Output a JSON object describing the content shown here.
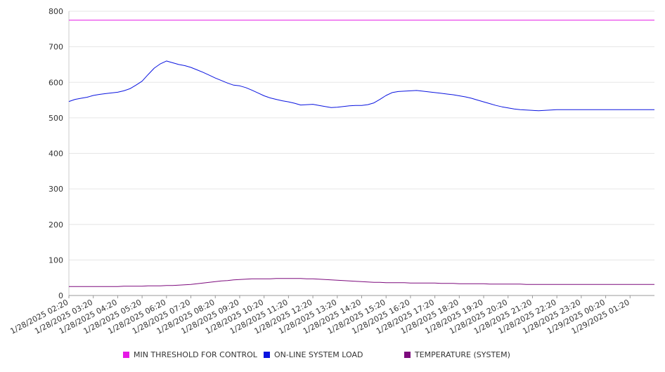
{
  "chart_data": {
    "type": "line",
    "title": "",
    "xlabel": "",
    "ylabel": "",
    "ylim": [
      0,
      800
    ],
    "yticks": [
      0,
      100,
      200,
      300,
      400,
      500,
      600,
      700,
      800
    ],
    "grid": true,
    "legend_position": "bottom",
    "x_tick_labels": [
      "1/28/2025 02:20",
      "1/28/2025 03:20",
      "1/28/2025 04:20",
      "1/28/2025 05:20",
      "1/28/2025 06:20",
      "1/28/2025 07:20",
      "1/28/2025 08:20",
      "1/28/2025 09:20",
      "1/28/2025 10:20",
      "1/28/2025 11:20",
      "1/28/2025 12:20",
      "1/28/2025 13:20",
      "1/28/2025 14:20",
      "1/28/2025 15:20",
      "1/28/2025 16:20",
      "1/28/2025 17:20",
      "1/28/2025 18:20",
      "1/28/2025 19:20",
      "1/28/2025 20:20",
      "1/28/2025 21:20",
      "1/28/2025 22:20",
      "1/28/2025 23:20",
      "1/29/2025 00:20",
      "1/29/2025 01:20"
    ],
    "x_hours": [
      0,
      0.25,
      0.5,
      0.75,
      1,
      1.25,
      1.5,
      1.75,
      2,
      2.25,
      2.5,
      2.75,
      3,
      3.25,
      3.5,
      3.75,
      4,
      4.25,
      4.5,
      4.75,
      5,
      5.25,
      5.5,
      5.75,
      6,
      6.25,
      6.5,
      6.75,
      7,
      7.25,
      7.5,
      7.75,
      8,
      8.25,
      8.5,
      8.75,
      9,
      9.25,
      9.5,
      9.75,
      10,
      10.25,
      10.5,
      10.75,
      11,
      11.25,
      11.5,
      11.75,
      12,
      12.25,
      12.5,
      12.75,
      13,
      13.25,
      13.5,
      13.75,
      14,
      14.25,
      14.5,
      14.75,
      15,
      15.25,
      15.5,
      15.75,
      16,
      16.25,
      16.5,
      16.75,
      17,
      17.25,
      17.5,
      17.75,
      18,
      18.25,
      18.5,
      18.75,
      19,
      19.25,
      19.5,
      19.75,
      20,
      20.25,
      20.5,
      20.75,
      21,
      21.25,
      21.5,
      21.75,
      22,
      22.25,
      22.5,
      22.75,
      23,
      23.25,
      23.5,
      23.75,
      24
    ],
    "x_range_hours": [
      0,
      24
    ],
    "series": [
      {
        "name": "MIN THRESHOLD FOR CONTROL",
        "color": "#e619e6",
        "values": [
          775,
          775,
          775,
          775,
          775,
          775,
          775,
          775,
          775,
          775,
          775,
          775,
          775,
          775,
          775,
          775,
          775,
          775,
          775,
          775,
          775,
          775,
          775,
          775,
          775,
          775,
          775,
          775,
          775,
          775,
          775,
          775,
          775,
          775,
          775,
          775,
          775,
          775,
          775,
          775,
          775,
          775,
          775,
          775,
          775,
          775,
          775,
          775,
          775,
          775,
          775,
          775,
          775,
          775,
          775,
          775,
          775,
          775,
          775,
          775,
          775,
          775,
          775,
          775,
          775,
          775,
          775,
          775,
          775,
          775,
          775,
          775,
          775,
          775,
          775,
          775,
          775,
          775,
          775,
          775,
          775,
          775,
          775,
          775,
          775,
          775,
          775,
          775,
          775,
          775,
          775,
          775,
          775,
          775,
          775,
          775,
          775
        ]
      },
      {
        "name": "ON-LINE SYSTEM LOAD",
        "color": "#0a14e0",
        "values": [
          546,
          552,
          555,
          558,
          563,
          566,
          568,
          570,
          572,
          576,
          582,
          592,
          603,
          622,
          640,
          652,
          660,
          655,
          650,
          647,
          642,
          635,
          628,
          620,
          612,
          605,
          598,
          592,
          590,
          585,
          578,
          570,
          562,
          556,
          552,
          548,
          545,
          541,
          536,
          537,
          538,
          535,
          532,
          529,
          530,
          532,
          534,
          535,
          535,
          537,
          542,
          552,
          563,
          571,
          574,
          575,
          576,
          577,
          575,
          573,
          571,
          569,
          567,
          565,
          562,
          559,
          555,
          550,
          545,
          540,
          535,
          531,
          528,
          525,
          523,
          522,
          521,
          520,
          521,
          522,
          523,
          523,
          523,
          523,
          523,
          523,
          523,
          523,
          523,
          523,
          523,
          523,
          523,
          523,
          523,
          523,
          523
        ]
      },
      {
        "name": "TEMPERATURE (SYSTEM)",
        "color": "#7d0a7d",
        "values": [
          25,
          25,
          25,
          25,
          25,
          25,
          25,
          25,
          25,
          26,
          26,
          26,
          26,
          27,
          27,
          27,
          28,
          28,
          29,
          30,
          31,
          33,
          35,
          37,
          39,
          41,
          42,
          44,
          45,
          46,
          47,
          47,
          47,
          47,
          48,
          48,
          48,
          48,
          48,
          47,
          47,
          46,
          45,
          44,
          43,
          42,
          41,
          40,
          39,
          38,
          37,
          37,
          36,
          36,
          36,
          36,
          35,
          35,
          35,
          35,
          35,
          34,
          34,
          34,
          33,
          33,
          33,
          33,
          33,
          32,
          32,
          32,
          32,
          32,
          32,
          31,
          31,
          31,
          31,
          31,
          31,
          31,
          31,
          31,
          31,
          31,
          31,
          31,
          31,
          31,
          31,
          31,
          31,
          31,
          31,
          31,
          31
        ]
      }
    ]
  }
}
